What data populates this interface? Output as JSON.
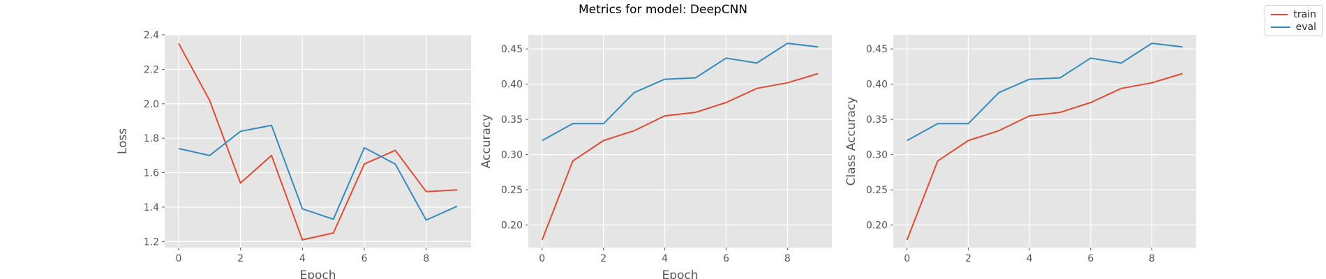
{
  "figure_title": "Metrics for model: DeepCNN",
  "legend": {
    "items": [
      {
        "label": "train",
        "color": "#E24A33"
      },
      {
        "label": "eval",
        "color": "#348ABD"
      }
    ]
  },
  "style": {
    "panel_background": "#E5E5E5",
    "grid_color": "#FFFFFF",
    "tick_color": "#555555"
  },
  "chart_data": [
    {
      "type": "line",
      "title": "",
      "xlabel": "Epoch",
      "ylabel": "Loss",
      "x": [
        0,
        1,
        2,
        3,
        4,
        5,
        6,
        7,
        8,
        9
      ],
      "xlim": [
        -0.45,
        9.45
      ],
      "ylim": [
        1.165,
        2.4
      ],
      "xticks": [
        0,
        2,
        4,
        6,
        8
      ],
      "yticks": [
        1.2,
        1.4,
        1.6,
        1.8,
        2.0,
        2.2,
        2.4
      ],
      "ytick_labels": [
        "1.2",
        "1.4",
        "1.6",
        "1.8",
        "2.0",
        "2.2",
        "2.4"
      ],
      "grid": true,
      "series": [
        {
          "name": "train",
          "color": "#E24A33",
          "values": [
            2.35,
            2.02,
            1.54,
            1.7,
            1.21,
            1.25,
            1.65,
            1.73,
            1.49,
            1.5
          ]
        },
        {
          "name": "eval",
          "color": "#348ABD",
          "values": [
            1.74,
            1.7,
            1.84,
            1.875,
            1.39,
            1.33,
            1.745,
            1.65,
            1.325,
            1.405
          ]
        }
      ]
    },
    {
      "type": "line",
      "title": "",
      "xlabel": "Epoch",
      "ylabel": "Accuracy",
      "x": [
        0,
        1,
        2,
        3,
        4,
        5,
        6,
        7,
        8,
        9
      ],
      "xlim": [
        -0.45,
        9.45
      ],
      "ylim": [
        0.168,
        0.47
      ],
      "xticks": [
        0,
        2,
        4,
        6,
        8
      ],
      "yticks": [
        0.2,
        0.25,
        0.3,
        0.35,
        0.4,
        0.45
      ],
      "ytick_labels": [
        "0.20",
        "0.25",
        "0.30",
        "0.35",
        "0.40",
        "0.45"
      ],
      "grid": true,
      "series": [
        {
          "name": "train",
          "color": "#E24A33",
          "values": [
            0.179,
            0.291,
            0.32,
            0.334,
            0.355,
            0.36,
            0.374,
            0.394,
            0.402,
            0.415
          ]
        },
        {
          "name": "eval",
          "color": "#348ABD",
          "values": [
            0.32,
            0.344,
            0.344,
            0.388,
            0.407,
            0.409,
            0.437,
            0.43,
            0.458,
            0.453
          ]
        }
      ]
    },
    {
      "type": "line",
      "title": "",
      "xlabel": "",
      "ylabel": "Class Accuracy",
      "x": [
        0,
        1,
        2,
        3,
        4,
        5,
        6,
        7,
        8,
        9
      ],
      "xlim": [
        -0.45,
        9.45
      ],
      "ylim": [
        0.168,
        0.47
      ],
      "xticks": [
        0,
        2,
        4,
        6,
        8
      ],
      "yticks": [
        0.2,
        0.25,
        0.3,
        0.35,
        0.4,
        0.45
      ],
      "ytick_labels": [
        "0.20",
        "0.25",
        "0.30",
        "0.35",
        "0.40",
        "0.45"
      ],
      "grid": true,
      "series": [
        {
          "name": "train",
          "color": "#E24A33",
          "values": [
            0.179,
            0.291,
            0.32,
            0.334,
            0.355,
            0.36,
            0.374,
            0.394,
            0.402,
            0.415
          ]
        },
        {
          "name": "eval",
          "color": "#348ABD",
          "values": [
            0.32,
            0.344,
            0.344,
            0.388,
            0.407,
            0.409,
            0.437,
            0.43,
            0.458,
            0.453
          ]
        }
      ]
    }
  ]
}
